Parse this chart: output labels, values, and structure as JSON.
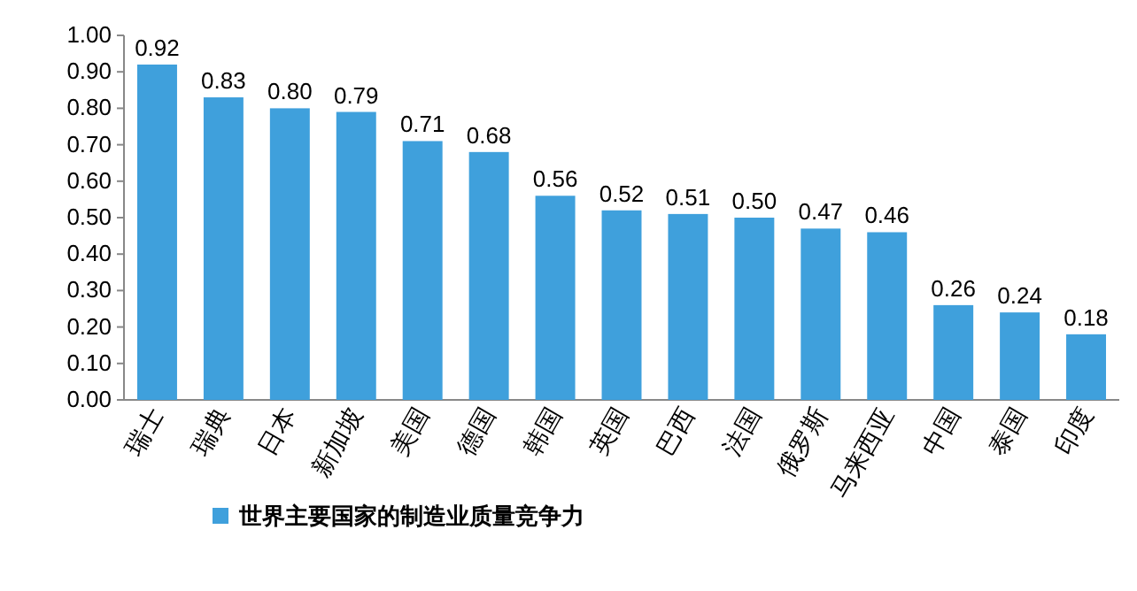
{
  "chart_data": {
    "type": "bar",
    "categories": [
      "瑞士",
      "瑞典",
      "日本",
      "新加坡",
      "美国",
      "德国",
      "韩国",
      "英国",
      "巴西",
      "法国",
      "俄罗斯",
      "马来西亚",
      "中国",
      "泰国",
      "印度"
    ],
    "series": [
      {
        "name": "世界主要国家的制造业质量竞争力",
        "color": "#3fa0dc",
        "values": [
          0.92,
          0.83,
          0.8,
          0.79,
          0.71,
          0.68,
          0.56,
          0.52,
          0.51,
          0.5,
          0.47,
          0.46,
          0.26,
          0.24,
          0.18
        ],
        "value_labels": [
          "0.92",
          "0.83",
          "0.80",
          "0.79",
          "0.71",
          "0.68",
          "0.56",
          "0.52",
          "0.51",
          "0.50",
          "0.47",
          "0.46",
          "0.26",
          "0.24",
          "0.18"
        ]
      }
    ],
    "ylim": [
      0,
      1
    ],
    "yticks": [
      {
        "value": 0,
        "label": "0.00"
      },
      {
        "value": 0.1,
        "label": "0.10"
      },
      {
        "value": 0.2,
        "label": "0.20"
      },
      {
        "value": 0.3,
        "label": "0.30"
      },
      {
        "value": 0.4,
        "label": "0.40"
      },
      {
        "value": 0.5,
        "label": "0.50"
      },
      {
        "value": 0.6,
        "label": "0.60"
      },
      {
        "value": 0.7,
        "label": "0.70"
      },
      {
        "value": 0.8,
        "label": "0.80"
      },
      {
        "value": 0.9,
        "label": "0.90"
      },
      {
        "value": 1,
        "label": "1.00"
      }
    ],
    "grid": false,
    "legend": "bottom"
  }
}
